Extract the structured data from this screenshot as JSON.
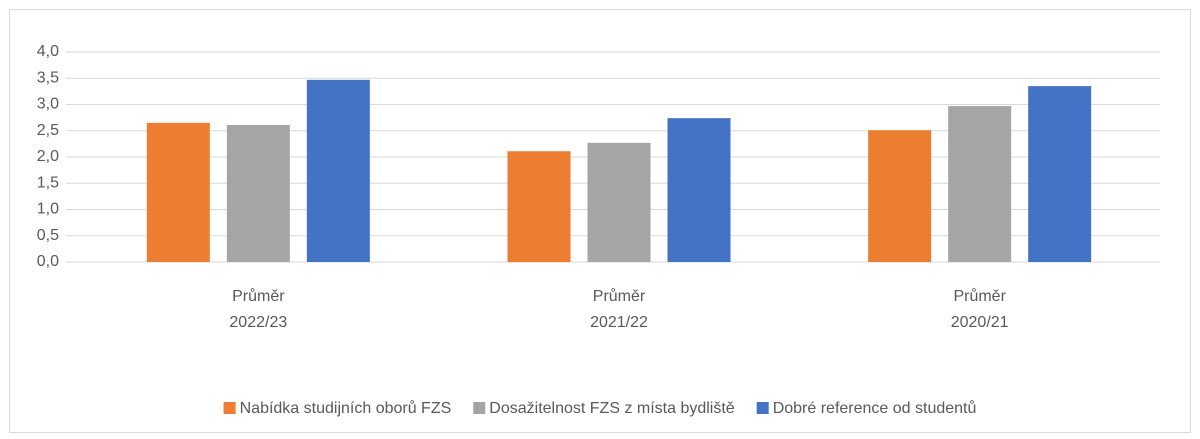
{
  "chart_data": {
    "type": "bar",
    "categories": [
      [
        "Průměr",
        "2022/23"
      ],
      [
        "Průměr",
        "2021/22"
      ],
      [
        "Průměr",
        "2020/21"
      ]
    ],
    "series": [
      {
        "name": "Nabídka studijních oborů FZS",
        "color": "#ed7d31",
        "values": [
          2.65,
          2.11,
          2.51
        ]
      },
      {
        "name": "Dosažitelnost FZS z místa bydliště",
        "color": "#a5a5a5",
        "values": [
          2.61,
          2.27,
          2.97
        ]
      },
      {
        "name": "Dobré reference od studentů",
        "color": "#4472c4",
        "values": [
          3.47,
          2.74,
          3.35
        ]
      }
    ],
    "ylim": [
      0,
      4
    ],
    "yticks": [
      {
        "value": 0,
        "label": "0,0"
      },
      {
        "value": 0.5,
        "label": "0,5"
      },
      {
        "value": 1,
        "label": "1,0"
      },
      {
        "value": 1.5,
        "label": "1,5"
      },
      {
        "value": 2,
        "label": "2,0"
      },
      {
        "value": 2.5,
        "label": "2,5"
      },
      {
        "value": 3,
        "label": "3,0"
      },
      {
        "value": 3.5,
        "label": "3,5"
      },
      {
        "value": 4,
        "label": "4,0"
      }
    ],
    "grid": true,
    "legend": "bottom"
  }
}
